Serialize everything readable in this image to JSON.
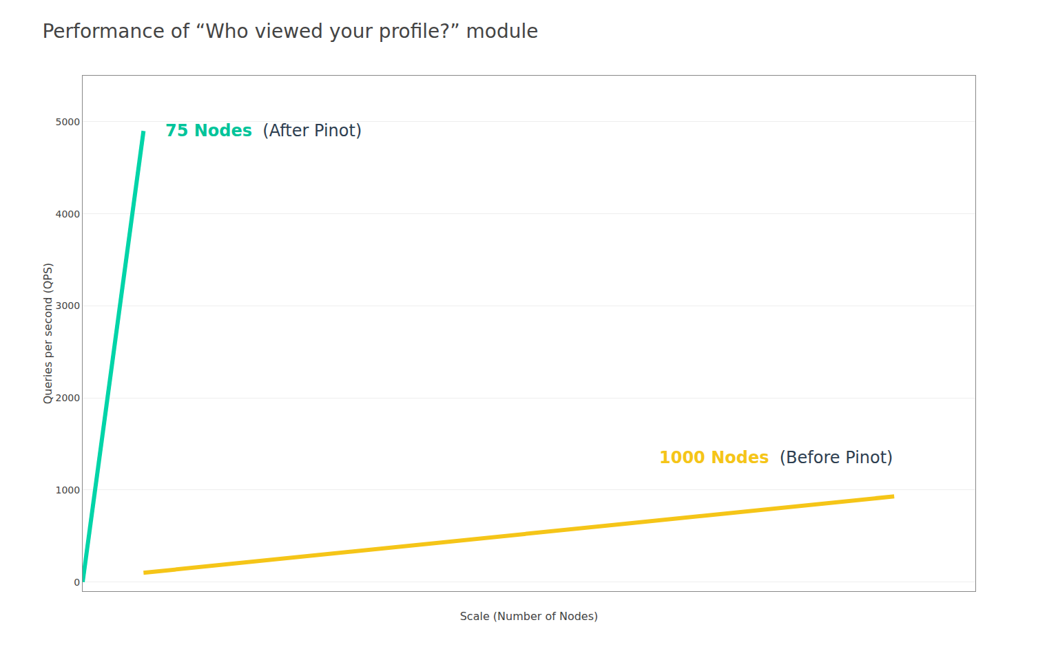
{
  "chart_data": {
    "type": "line",
    "title": "Performance of “Who viewed your profile?” module",
    "x_label": "Scale (Number of Nodes)",
    "y_label": "Queries per second (QPS)",
    "series": [
      {
        "color": "#00d4a8",
        "x": [
          0,
          75
        ],
        "values": [
          0,
          4900
        ]
      },
      {
        "color": "#f5c518",
        "x": [
          75,
          1000
        ],
        "values": [
          100,
          930
        ]
      }
    ],
    "annotations": [
      {
        "text": "75 Nodes",
        "color": "#00c49a",
        "desc": "(After Pinot)",
        "desc_color": "#2d3e50"
      },
      {
        "text": "1000 Nodes",
        "color": "#f5c518",
        "desc": "(Before Pinot)",
        "desc_color": "#2d3e50"
      }
    ],
    "xlim": [
      0,
      1100
    ],
    "ylim": [
      -100,
      5500
    ],
    "yticks": [
      0,
      1000,
      2000,
      3000,
      4000,
      5000
    ],
    "grid": true,
    "tick_labels": "y"
  }
}
